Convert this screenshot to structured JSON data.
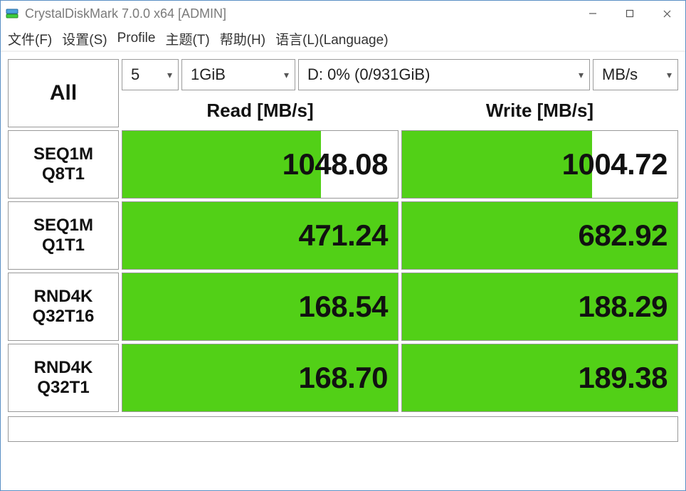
{
  "window": {
    "title": "CrystalDiskMark 7.0.0 x64 [ADMIN]"
  },
  "menu": {
    "items": [
      "文件(F)",
      "设置(S)",
      "Profile",
      "主题(T)",
      "帮助(H)",
      "语言(L)(Language)"
    ]
  },
  "controls": {
    "all_label": "All",
    "count": "5",
    "size": "1GiB",
    "drive": "D: 0% (0/931GiB)",
    "unit": "MB/s"
  },
  "columns": {
    "read": "Read [MB/s]",
    "write": "Write [MB/s]"
  },
  "tests": [
    {
      "line1": "SEQ1M",
      "line2": "Q8T1",
      "read": "1048.08",
      "read_pct": 72,
      "write": "1004.72",
      "write_pct": 69
    },
    {
      "line1": "SEQ1M",
      "line2": "Q1T1",
      "read": "471.24",
      "read_pct": 100,
      "write": "682.92",
      "write_pct": 100
    },
    {
      "line1": "RND4K",
      "line2": "Q32T16",
      "read": "168.54",
      "read_pct": 100,
      "write": "188.29",
      "write_pct": 100
    },
    {
      "line1": "RND4K",
      "line2": "Q32T1",
      "read": "168.70",
      "read_pct": 100,
      "write": "189.38",
      "write_pct": 100
    }
  ],
  "colors": {
    "bar": "#52d017",
    "cell_bg": "#ffffff",
    "text": "#111111",
    "border": "#999999"
  },
  "statusbar": {
    "text": ""
  }
}
